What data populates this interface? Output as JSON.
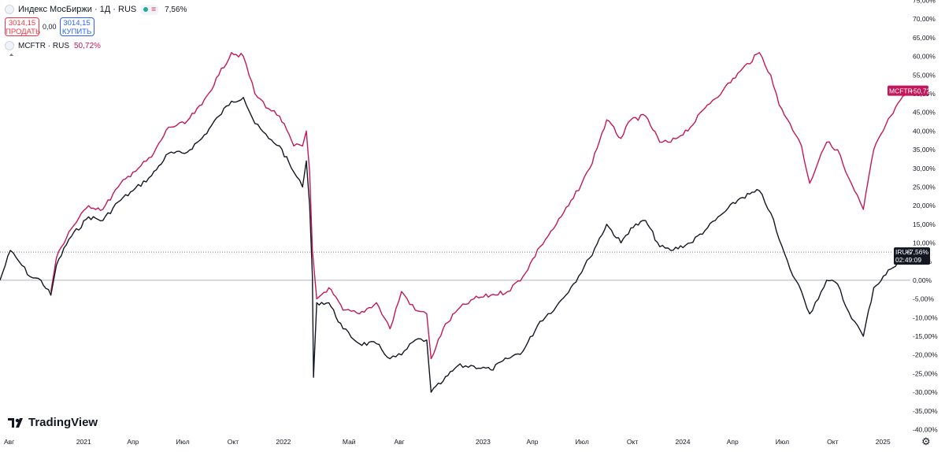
{
  "legend": {
    "symbol_title": "Индекс МосБиржи · 1Д · RUS",
    "change": "7,56%",
    "sell_price": "3014,15",
    "sell_label": "ПРОДАТЬ",
    "spread": "0,00",
    "buy_price": "3014,15",
    "buy_label": "КУПИТЬ",
    "compare_name": "MCFTR · RUS",
    "compare_change": "50,72%"
  },
  "logo_text": "TradingView",
  "price_tags": {
    "mcftr_symbol": "MCFTR",
    "mcftr_value": "+50,72%",
    "imoex_symbol": "IRUS",
    "imoex_value": "+7,56%",
    "countdown": "02:49:09"
  },
  "colors": {
    "imoex": "#131722",
    "mcftr": "#c2185b",
    "background": "#ffffff",
    "grid_line": "#b2b5be"
  },
  "chart_data": {
    "type": "line",
    "y_axis": {
      "unit": "%",
      "range": [
        -40,
        75
      ],
      "step": 5,
      "position": "right"
    },
    "y_tick_labels": [
      "75,00%",
      "70,00%",
      "65,00%",
      "60,00%",
      "55,00%",
      "50,00%",
      "45,00%",
      "40,00%",
      "35,00%",
      "30,00%",
      "25,00%",
      "20,00%",
      "15,00%",
      "10,00%",
      "5,00%",
      "0,00%",
      "-5,00%",
      "-10,00%",
      "-15,00%",
      "-20,00%",
      "-25,00%",
      "-30,00%",
      "-35,00%",
      "-40,00%"
    ],
    "x_tick_labels": [
      "Авг",
      "2021",
      "Апр",
      "Июл",
      "Окт",
      "2022",
      "Май",
      "Авг",
      "2023",
      "Апр",
      "Июл",
      "Окт",
      "2024",
      "Апр",
      "Июл",
      "Окт",
      "2025"
    ],
    "x_tick_dates": [
      "2020-08-01",
      "2021-01-01",
      "2021-04-01",
      "2021-07-01",
      "2021-10-01",
      "2022-01-01",
      "2022-05-01",
      "2022-08-01",
      "2023-01-01",
      "2023-04-01",
      "2023-07-01",
      "2023-10-01",
      "2024-01-01",
      "2024-04-01",
      "2024-07-01",
      "2024-10-01",
      "2025-01-01"
    ],
    "x_range": [
      "2020-08-01",
      "2025-02-20"
    ],
    "series": [
      {
        "name": "Индекс МосБиржи",
        "color": "#131722",
        "points": [
          [
            "2020-08-01",
            0
          ],
          [
            "2020-08-20",
            8
          ],
          [
            "2020-09-05",
            5
          ],
          [
            "2020-09-25",
            1
          ],
          [
            "2020-10-15",
            0
          ],
          [
            "2020-11-02",
            -4
          ],
          [
            "2020-11-12",
            4
          ],
          [
            "2020-12-05",
            11
          ],
          [
            "2021-01-10",
            17
          ],
          [
            "2021-02-05",
            16
          ],
          [
            "2021-03-05",
            21
          ],
          [
            "2021-04-01",
            24
          ],
          [
            "2021-05-05",
            28
          ],
          [
            "2021-06-05",
            34
          ],
          [
            "2021-07-05",
            34
          ],
          [
            "2021-08-05",
            38
          ],
          [
            "2021-09-05",
            44
          ],
          [
            "2021-09-28",
            48
          ],
          [
            "2021-10-20",
            49
          ],
          [
            "2021-11-10",
            42
          ],
          [
            "2021-12-05",
            38
          ],
          [
            "2021-12-25",
            36
          ],
          [
            "2022-01-20",
            29
          ],
          [
            "2022-02-05",
            25
          ],
          [
            "2022-02-12",
            32
          ],
          [
            "2022-02-18",
            20
          ],
          [
            "2022-02-23",
            1
          ],
          [
            "2022-02-25",
            -26
          ],
          [
            "2022-03-03",
            -6
          ],
          [
            "2022-03-25",
            -6
          ],
          [
            "2022-04-20",
            -13
          ],
          [
            "2022-05-20",
            -17
          ],
          [
            "2022-06-20",
            -17
          ],
          [
            "2022-07-15",
            -21
          ],
          [
            "2022-08-05",
            -20
          ],
          [
            "2022-08-30",
            -16
          ],
          [
            "2022-09-20",
            -16
          ],
          [
            "2022-09-28",
            -30
          ],
          [
            "2022-10-20",
            -27
          ],
          [
            "2022-11-15",
            -23
          ],
          [
            "2022-12-15",
            -23
          ],
          [
            "2023-01-15",
            -24
          ],
          [
            "2023-02-15",
            -21
          ],
          [
            "2023-03-15",
            -19
          ],
          [
            "2023-04-15",
            -11
          ],
          [
            "2023-05-15",
            -7
          ],
          [
            "2023-06-15",
            -1
          ],
          [
            "2023-07-15",
            6
          ],
          [
            "2023-08-15",
            15
          ],
          [
            "2023-09-10",
            10
          ],
          [
            "2023-09-28",
            14
          ],
          [
            "2023-10-25",
            16
          ],
          [
            "2023-11-20",
            9
          ],
          [
            "2023-12-10",
            8
          ],
          [
            "2024-01-15",
            10
          ],
          [
            "2024-02-15",
            14
          ],
          [
            "2024-03-15",
            18
          ],
          [
            "2024-04-15",
            22
          ],
          [
            "2024-05-20",
            24
          ],
          [
            "2024-06-10",
            18
          ],
          [
            "2024-06-25",
            11
          ],
          [
            "2024-07-15",
            3
          ],
          [
            "2024-08-05",
            -3
          ],
          [
            "2024-08-20",
            -9
          ],
          [
            "2024-09-10",
            -3
          ],
          [
            "2024-09-20",
            0
          ],
          [
            "2024-10-10",
            -1
          ],
          [
            "2024-10-25",
            -7
          ],
          [
            "2024-11-10",
            -11
          ],
          [
            "2024-11-26",
            -15
          ],
          [
            "2024-12-15",
            -2
          ],
          [
            "2025-01-15",
            3
          ],
          [
            "2025-02-15",
            7.56
          ]
        ]
      },
      {
        "name": "MCFTR",
        "color": "#c2185b",
        "points": [
          [
            "2020-11-02",
            -3
          ],
          [
            "2020-11-12",
            6
          ],
          [
            "2020-12-05",
            13
          ],
          [
            "2021-01-10",
            20
          ],
          [
            "2021-02-05",
            19
          ],
          [
            "2021-03-05",
            25
          ],
          [
            "2021-04-01",
            29
          ],
          [
            "2021-05-05",
            33
          ],
          [
            "2021-06-05",
            41
          ],
          [
            "2021-07-05",
            42
          ],
          [
            "2021-08-05",
            47
          ],
          [
            "2021-09-05",
            55
          ],
          [
            "2021-09-28",
            61
          ],
          [
            "2021-10-20",
            60
          ],
          [
            "2021-11-10",
            50
          ],
          [
            "2021-12-05",
            46
          ],
          [
            "2021-12-25",
            44
          ],
          [
            "2022-01-20",
            36
          ],
          [
            "2022-02-05",
            36
          ],
          [
            "2022-02-12",
            40
          ],
          [
            "2022-02-18",
            29
          ],
          [
            "2022-02-23",
            8
          ],
          [
            "2022-03-03",
            -5
          ],
          [
            "2022-03-25",
            -2
          ],
          [
            "2022-04-20",
            -8
          ],
          [
            "2022-05-20",
            -9
          ],
          [
            "2022-06-20",
            -6
          ],
          [
            "2022-07-15",
            -13
          ],
          [
            "2022-08-05",
            -3
          ],
          [
            "2022-08-30",
            -8
          ],
          [
            "2022-09-20",
            -9
          ],
          [
            "2022-09-28",
            -21
          ],
          [
            "2022-10-20",
            -13
          ],
          [
            "2022-11-15",
            -8
          ],
          [
            "2022-12-15",
            -5
          ],
          [
            "2023-01-15",
            -4
          ],
          [
            "2023-02-15",
            -3
          ],
          [
            "2023-03-15",
            1
          ],
          [
            "2023-04-15",
            9
          ],
          [
            "2023-05-15",
            15
          ],
          [
            "2023-06-15",
            22
          ],
          [
            "2023-07-15",
            30
          ],
          [
            "2023-08-15",
            43
          ],
          [
            "2023-09-10",
            38
          ],
          [
            "2023-09-28",
            43
          ],
          [
            "2023-10-25",
            44
          ],
          [
            "2023-11-20",
            37
          ],
          [
            "2023-12-10",
            37
          ],
          [
            "2024-01-15",
            41
          ],
          [
            "2024-02-15",
            47
          ],
          [
            "2024-03-15",
            51
          ],
          [
            "2024-04-15",
            56
          ],
          [
            "2024-05-20",
            61
          ],
          [
            "2024-06-10",
            55
          ],
          [
            "2024-06-25",
            47
          ],
          [
            "2024-07-15",
            42
          ],
          [
            "2024-08-05",
            36
          ],
          [
            "2024-08-20",
            26
          ],
          [
            "2024-09-10",
            34
          ],
          [
            "2024-09-20",
            37
          ],
          [
            "2024-10-10",
            35
          ],
          [
            "2024-10-25",
            29
          ],
          [
            "2024-11-10",
            24
          ],
          [
            "2024-11-26",
            19
          ],
          [
            "2024-12-15",
            35
          ],
          [
            "2025-01-15",
            44
          ],
          [
            "2025-02-15",
            50.72
          ]
        ]
      }
    ],
    "reference_line": {
      "value": 7.56,
      "style": "dotted"
    },
    "zero_line": 0
  }
}
